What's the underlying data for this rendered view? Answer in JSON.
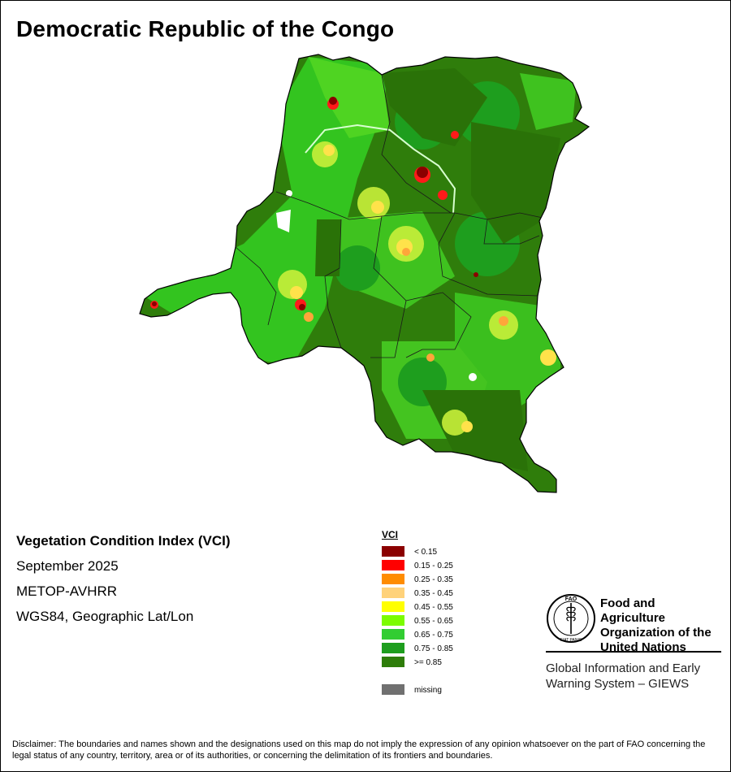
{
  "title": "Democratic Republic of the Congo",
  "info": {
    "product": "Vegetation Condition Index (VCI)",
    "period": "September 2025",
    "sensor": "METOP-AVHRR",
    "projection": "WGS84, Geographic Lat/Lon"
  },
  "legend": {
    "title": "VCI",
    "classes": [
      {
        "label": "< 0.15",
        "color": "#8b0000"
      },
      {
        "label": "0.15 - 0.25",
        "color": "#ff0000"
      },
      {
        "label": "0.25 - 0.35",
        "color": "#ff8c00"
      },
      {
        "label": "0.35 - 0.45",
        "color": "#ffd27a"
      },
      {
        "label": "0.45 - 0.55",
        "color": "#ffff00"
      },
      {
        "label": "0.55 - 0.65",
        "color": "#7cfc00"
      },
      {
        "label": "0.65 - 0.75",
        "color": "#32cd32"
      },
      {
        "label": "0.75 - 0.85",
        "color": "#1e9e1e"
      },
      {
        "label": ">= 0.85",
        "color": "#2e7d0a"
      }
    ],
    "missing": {
      "label": "missing",
      "color": "#707070"
    }
  },
  "organization": {
    "name_line1": "Food and Agriculture",
    "name_line2": "Organization of the",
    "name_line3": "United Nations",
    "logo_text": "FAO",
    "logo_motto": "FIAT PANIS"
  },
  "giews": {
    "line1": "Global Information and Early",
    "line2": "Warning System – GIEWS"
  },
  "disclaimer": "Disclaimer: The boundaries and names shown and the designations used on this map do not imply the expression of any opinion whatsoever on the part of FAO concerning the legal status of any country, territory, area or of its authorities, or concerning the delimitation of its frontiers and boundaries."
}
